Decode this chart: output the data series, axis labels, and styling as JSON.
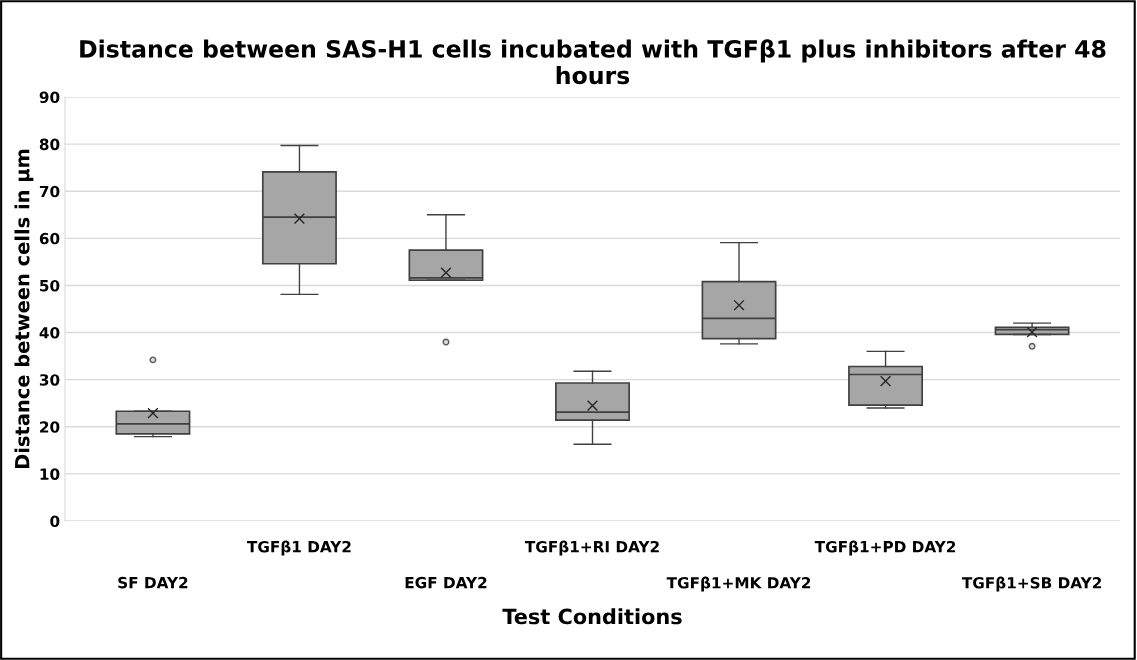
{
  "chart_data": {
    "type": "box",
    "title": "Distance between SAS-H1 cells incubated with TGFβ1 plus inhibitors after 48 hours",
    "xlabel": "Test Conditions",
    "ylabel": "Distance between cells in µm",
    "categories": [
      "SF DAY2",
      "TGFβ1 DAY2",
      "EGF DAY2",
      "TGFβ1+RI DAY2",
      "TGFβ1+MK DAY2",
      "TGFβ1+PD DAY2",
      "TGFβ1+SB DAY2"
    ],
    "color": "#a6a6a6",
    "boxes": [
      {
        "low": 17.9,
        "q1": 18.5,
        "median": 20.6,
        "q3": 23.3,
        "high": 23.3,
        "mean": 22.9,
        "outliers": [
          34.2
        ]
      },
      {
        "low": 48.1,
        "q1": 54.6,
        "median": 64.5,
        "q3": 74.1,
        "high": 79.7,
        "mean": 64.2
      },
      {
        "low": 51.1,
        "q1": 51.1,
        "median": 51.6,
        "q3": 57.5,
        "high": 65.0,
        "mean": 52.7,
        "outliers": [
          38.0
        ]
      },
      {
        "low": 16.3,
        "q1": 21.4,
        "median": 23.1,
        "q3": 29.3,
        "high": 31.8,
        "mean": 24.5
      },
      {
        "low": 37.6,
        "q1": 38.7,
        "median": 43.0,
        "q3": 50.8,
        "high": 59.1,
        "mean": 45.8
      },
      {
        "low": 24.0,
        "q1": 24.6,
        "median": 31.1,
        "q3": 32.8,
        "high": 36.0,
        "mean": 29.7
      },
      {
        "low": 39.6,
        "q1": 39.6,
        "median": 40.6,
        "q3": 41.1,
        "high": 42.0,
        "mean": 40.1,
        "outliers": [
          37.1
        ]
      }
    ],
    "ylim": [
      0,
      90
    ],
    "yticks": [
      0,
      10,
      20,
      30,
      40,
      50,
      60,
      70,
      80,
      90
    ],
    "grid": "y",
    "legend": false,
    "marker": "cross"
  }
}
